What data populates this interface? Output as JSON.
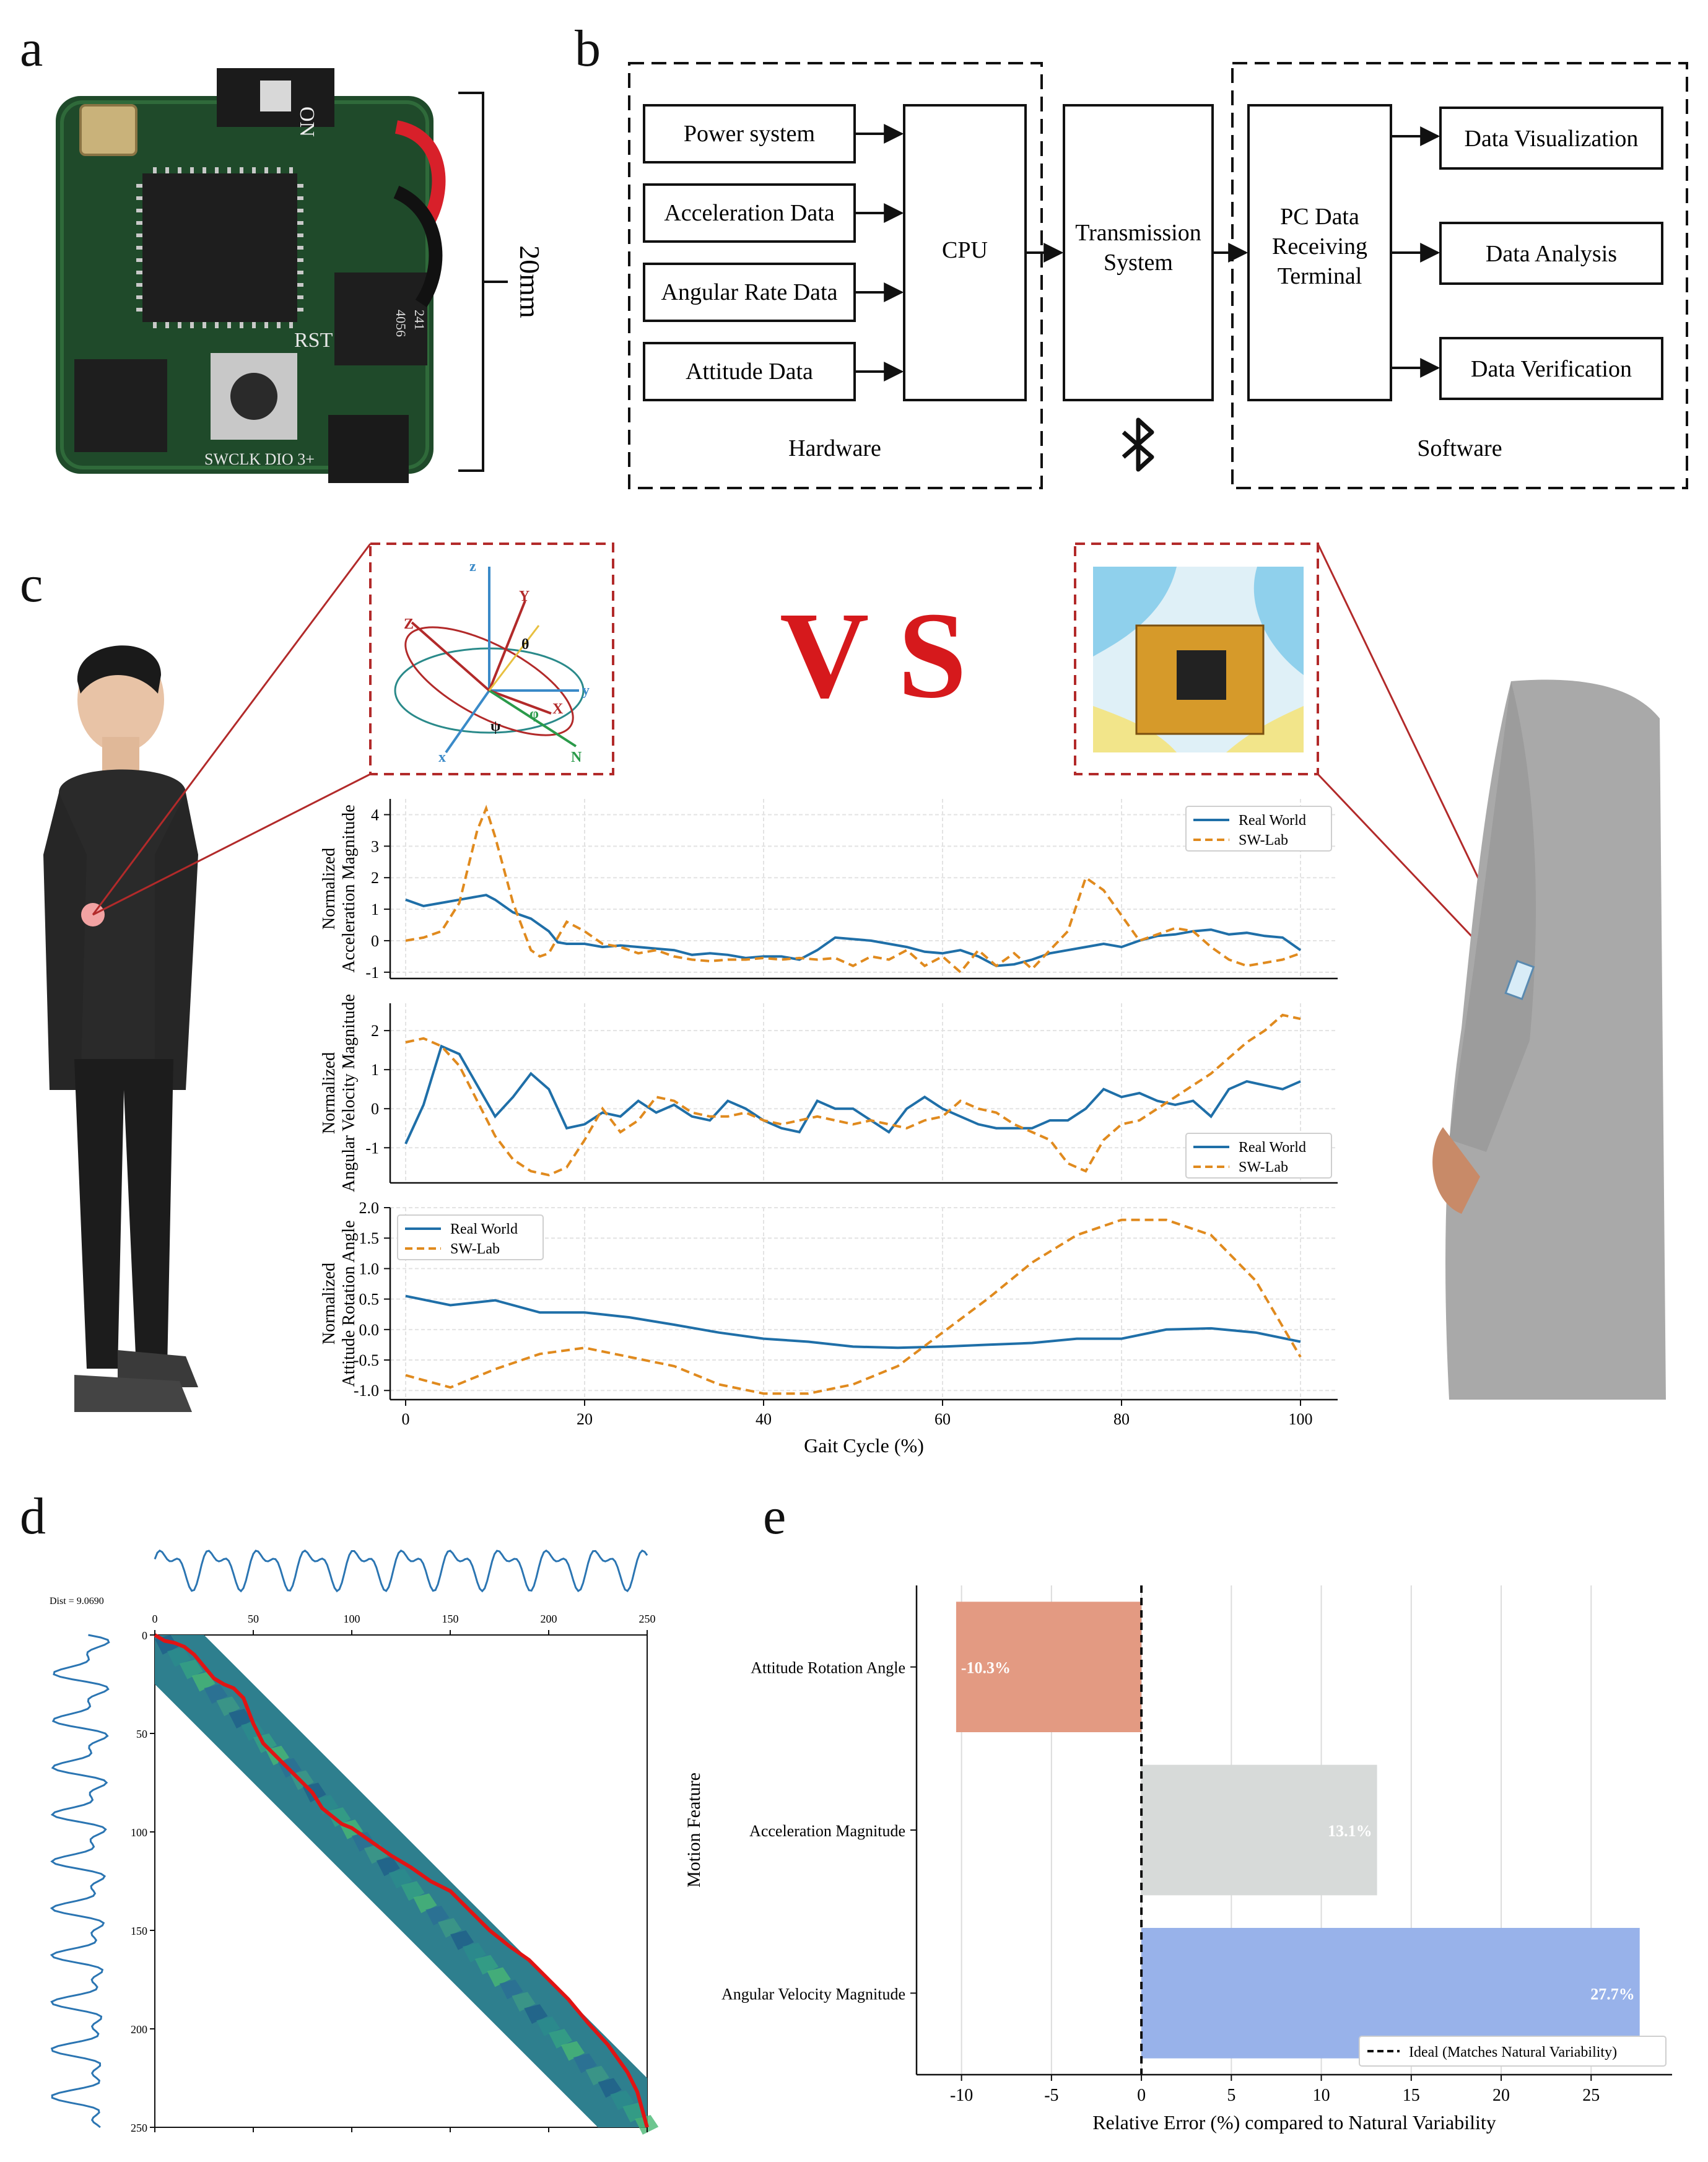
{
  "panels": {
    "a": "a",
    "b": "b",
    "c": "c",
    "d": "d",
    "e": "e"
  },
  "panel_a": {
    "board_labels": [
      "ON",
      "RST",
      "SWCLK DIO 3+",
      "4056",
      "241"
    ],
    "scale_label": "20mm",
    "colors": {
      "pcb": "#1f4a2a",
      "chip": "#1e1e1e",
      "wire_red": "#d8202a"
    }
  },
  "panel_b": {
    "hardware_items": [
      "Power system",
      "Acceleration Data",
      "Angular Rate Data",
      "Attitude Data"
    ],
    "cpu": "CPU",
    "transmission": [
      "Transmission",
      "System"
    ],
    "pc_receiver": [
      "PC Data",
      "Receiving",
      "Terminal"
    ],
    "software_items": [
      "Data Visualization",
      "Data Analysis",
      "Data Verification"
    ],
    "hardware_label": "Hardware",
    "software_label": "Software",
    "bluetooth_icon": "bluetooth-icon"
  },
  "panel_c": {
    "vs_text": "V S",
    "axes_inset": {
      "labels": [
        "z",
        "Y",
        "θ",
        "Z",
        "y",
        "ψ",
        "φ",
        "X",
        "x",
        "N"
      ]
    },
    "colors": {
      "real": "#1f6fa8",
      "lab": "#e08a1e",
      "vs": "#d6191c",
      "frame": "#b22a2a"
    }
  },
  "chart_data": [
    {
      "type": "line",
      "ylabel": "Normalized\nAcceleration Magnitude",
      "xlim": [
        0,
        100
      ],
      "ylim": [
        -1.2,
        4.5
      ],
      "yticks": [
        -1,
        0,
        1,
        2,
        3,
        4
      ],
      "legend": "top-right",
      "series": [
        {
          "name": "Real World",
          "x": [
            0,
            2,
            4,
            6,
            8,
            9,
            10,
            12,
            14,
            16,
            17,
            18,
            20,
            22,
            24,
            26,
            28,
            30,
            32,
            34,
            36,
            38,
            40,
            42,
            44,
            46,
            48,
            50,
            52,
            54,
            56,
            58,
            60,
            62,
            64,
            66,
            68,
            70,
            72,
            74,
            76,
            78,
            80,
            82,
            84,
            86,
            88,
            90,
            92,
            94,
            96,
            98,
            100
          ],
          "y": [
            1.3,
            1.1,
            1.2,
            1.3,
            1.4,
            1.45,
            1.3,
            0.9,
            0.7,
            0.3,
            -0.05,
            -0.1,
            -0.1,
            -0.2,
            -0.15,
            -0.2,
            -0.25,
            -0.3,
            -0.45,
            -0.4,
            -0.45,
            -0.55,
            -0.5,
            -0.5,
            -0.6,
            -0.3,
            0.1,
            0.05,
            0.0,
            -0.1,
            -0.2,
            -0.35,
            -0.4,
            -0.3,
            -0.5,
            -0.8,
            -0.75,
            -0.6,
            -0.4,
            -0.3,
            -0.2,
            -0.1,
            -0.2,
            0.0,
            0.15,
            0.2,
            0.3,
            0.35,
            0.2,
            0.25,
            0.15,
            0.1,
            -0.3
          ]
        },
        {
          "name": "SW-Lab",
          "x": [
            0,
            2,
            4,
            6,
            8,
            9,
            10,
            12,
            14,
            15,
            16,
            18,
            20,
            22,
            24,
            26,
            28,
            30,
            32,
            34,
            36,
            38,
            40,
            42,
            44,
            46,
            48,
            50,
            52,
            54,
            56,
            58,
            60,
            62,
            64,
            66,
            68,
            70,
            72,
            74,
            76,
            78,
            80,
            82,
            84,
            86,
            88,
            90,
            92,
            94,
            96,
            98,
            100
          ],
          "y": [
            0.0,
            0.1,
            0.3,
            1.2,
            3.5,
            4.2,
            3.3,
            1.2,
            -0.3,
            -0.5,
            -0.4,
            0.6,
            0.3,
            -0.1,
            -0.2,
            -0.4,
            -0.3,
            -0.5,
            -0.6,
            -0.65,
            -0.6,
            -0.6,
            -0.55,
            -0.6,
            -0.55,
            -0.6,
            -0.55,
            -0.8,
            -0.5,
            -0.6,
            -0.3,
            -0.8,
            -0.5,
            -1.0,
            -0.3,
            -0.8,
            -0.4,
            -0.9,
            -0.3,
            0.3,
            2.0,
            1.6,
            0.8,
            0.0,
            0.2,
            0.4,
            0.3,
            -0.2,
            -0.6,
            -0.8,
            -0.7,
            -0.6,
            -0.4
          ]
        }
      ]
    },
    {
      "type": "line",
      "ylabel": "Normalized\nAngular Velocity Magnitude",
      "xlim": [
        0,
        100
      ],
      "ylim": [
        -1.9,
        2.7
      ],
      "yticks": [
        -1,
        0,
        1,
        2
      ],
      "legend": "bottom-right",
      "series": [
        {
          "name": "Real World",
          "x": [
            0,
            2,
            4,
            6,
            8,
            10,
            12,
            14,
            16,
            18,
            20,
            22,
            24,
            26,
            28,
            30,
            32,
            34,
            36,
            38,
            40,
            42,
            44,
            46,
            48,
            50,
            52,
            54,
            56,
            58,
            60,
            62,
            64,
            66,
            68,
            70,
            72,
            74,
            76,
            78,
            80,
            82,
            84,
            86,
            88,
            90,
            92,
            94,
            96,
            98,
            100
          ],
          "y": [
            -0.9,
            0.1,
            1.6,
            1.4,
            0.6,
            -0.2,
            0.3,
            0.9,
            0.5,
            -0.5,
            -0.4,
            -0.1,
            -0.2,
            0.2,
            -0.1,
            0.1,
            -0.2,
            -0.3,
            0.2,
            0.0,
            -0.3,
            -0.5,
            -0.6,
            0.2,
            0.0,
            0.0,
            -0.3,
            -0.6,
            0.0,
            0.3,
            0.0,
            -0.2,
            -0.4,
            -0.5,
            -0.5,
            -0.5,
            -0.3,
            -0.3,
            0.0,
            0.5,
            0.3,
            0.4,
            0.2,
            0.1,
            0.2,
            -0.2,
            0.5,
            0.7,
            0.6,
            0.5,
            0.7
          ]
        },
        {
          "name": "SW-Lab",
          "x": [
            0,
            2,
            4,
            6,
            8,
            10,
            12,
            14,
            16,
            18,
            20,
            22,
            24,
            26,
            28,
            30,
            32,
            34,
            36,
            38,
            40,
            42,
            44,
            46,
            48,
            50,
            52,
            54,
            56,
            58,
            60,
            62,
            64,
            66,
            68,
            70,
            72,
            74,
            76,
            78,
            80,
            82,
            84,
            86,
            88,
            90,
            92,
            94,
            96,
            98,
            100
          ],
          "y": [
            1.7,
            1.8,
            1.6,
            1.1,
            0.2,
            -0.7,
            -1.3,
            -1.6,
            -1.7,
            -1.5,
            -0.8,
            0.0,
            -0.6,
            -0.3,
            0.3,
            0.2,
            -0.1,
            -0.2,
            -0.2,
            -0.1,
            -0.3,
            -0.4,
            -0.3,
            -0.2,
            -0.3,
            -0.4,
            -0.3,
            -0.4,
            -0.5,
            -0.3,
            -0.2,
            0.2,
            0.0,
            -0.1,
            -0.4,
            -0.6,
            -0.8,
            -1.4,
            -1.6,
            -0.8,
            -0.4,
            -0.3,
            0.0,
            0.3,
            0.6,
            0.9,
            1.3,
            1.7,
            2.0,
            2.4,
            2.3
          ]
        }
      ]
    },
    {
      "type": "line",
      "ylabel": "Normalized\nAttitude Rotation Angle",
      "xlabel": "Gait Cycle (%)",
      "xlim": [
        0,
        100
      ],
      "ylim": [
        -1.15,
        2.0
      ],
      "yticks": [
        -1.0,
        -0.5,
        0.0,
        0.5,
        1.0,
        1.5,
        2.0
      ],
      "ytick_labels": [
        "-1.0",
        "-0.5",
        "0.0",
        "0.5",
        "1.0",
        "1.5",
        "2.0"
      ],
      "xticks": [
        0,
        20,
        40,
        60,
        80,
        100
      ],
      "legend": "top-left",
      "series": [
        {
          "name": "Real World",
          "x": [
            0,
            5,
            10,
            15,
            20,
            25,
            30,
            35,
            40,
            45,
            50,
            55,
            60,
            65,
            70,
            75,
            80,
            85,
            90,
            95,
            100
          ],
          "y": [
            0.55,
            0.4,
            0.48,
            0.28,
            0.28,
            0.2,
            0.08,
            -0.05,
            -0.15,
            -0.2,
            -0.28,
            -0.3,
            -0.28,
            -0.25,
            -0.22,
            -0.15,
            -0.15,
            0.0,
            0.02,
            -0.05,
            -0.2
          ]
        },
        {
          "name": "SW-Lab",
          "x": [
            0,
            5,
            10,
            15,
            20,
            25,
            30,
            35,
            40,
            45,
            50,
            55,
            60,
            65,
            70,
            75,
            80,
            85,
            90,
            95,
            100
          ],
          "y": [
            -0.75,
            -0.95,
            -0.65,
            -0.4,
            -0.3,
            -0.45,
            -0.6,
            -0.9,
            -1.05,
            -1.05,
            -0.9,
            -0.6,
            -0.05,
            0.5,
            1.1,
            1.55,
            1.8,
            1.8,
            1.55,
            0.8,
            -0.45
          ]
        }
      ]
    },
    {
      "type": "heatmap",
      "title": "Dist = 9.0690",
      "xlim": [
        0,
        250
      ],
      "ylim": [
        0,
        250
      ],
      "xticks": [
        0,
        50,
        100,
        150,
        200,
        250
      ],
      "yticks": [
        0,
        50,
        100,
        150,
        200,
        250
      ],
      "warping_path": [
        [
          0,
          0
        ],
        [
          5,
          3
        ],
        [
          10,
          4
        ],
        [
          15,
          6
        ],
        [
          20,
          10
        ],
        [
          25,
          16
        ],
        [
          30,
          22
        ],
        [
          35,
          25
        ],
        [
          40,
          27
        ],
        [
          45,
          32
        ],
        [
          50,
          45
        ],
        [
          55,
          55
        ],
        [
          60,
          60
        ],
        [
          65,
          65
        ],
        [
          70,
          70
        ],
        [
          75,
          75
        ],
        [
          80,
          80
        ],
        [
          85,
          88
        ],
        [
          90,
          92
        ],
        [
          95,
          96
        ],
        [
          100,
          98
        ],
        [
          110,
          105
        ],
        [
          120,
          112
        ],
        [
          130,
          118
        ],
        [
          140,
          125
        ],
        [
          150,
          130
        ],
        [
          160,
          140
        ],
        [
          170,
          150
        ],
        [
          180,
          158
        ],
        [
          190,
          165
        ],
        [
          200,
          175
        ],
        [
          210,
          185
        ],
        [
          220,
          197
        ],
        [
          230,
          208
        ],
        [
          240,
          222
        ],
        [
          245,
          232
        ],
        [
          250,
          250
        ]
      ]
    },
    {
      "type": "bar",
      "orientation": "horizontal",
      "categories": [
        "Attitude Rotation Angle",
        "Acceleration Magnitude",
        "Angular Velocity Magnitude"
      ],
      "values": [
        -10.3,
        13.1,
        27.7
      ],
      "value_labels": [
        "-10.3%",
        "13.1%",
        "27.7%"
      ],
      "colors": [
        "#e39a82",
        "#d7dad9",
        "#98b2ea"
      ],
      "xlabel": "Relative Error (%) compared to Natural Variability",
      "ylabel": "Motion Feature",
      "xlim": [
        -12.5,
        29.5
      ],
      "xticks": [
        -10,
        -5,
        0,
        5,
        10,
        15,
        20,
        25
      ],
      "xtick_labels": [
        "-10",
        "-5",
        "0",
        "5",
        "10",
        "15",
        "20",
        "25"
      ],
      "legend_label": "Ideal (Matches Natural Variability)",
      "legend": "bottom-right"
    }
  ]
}
